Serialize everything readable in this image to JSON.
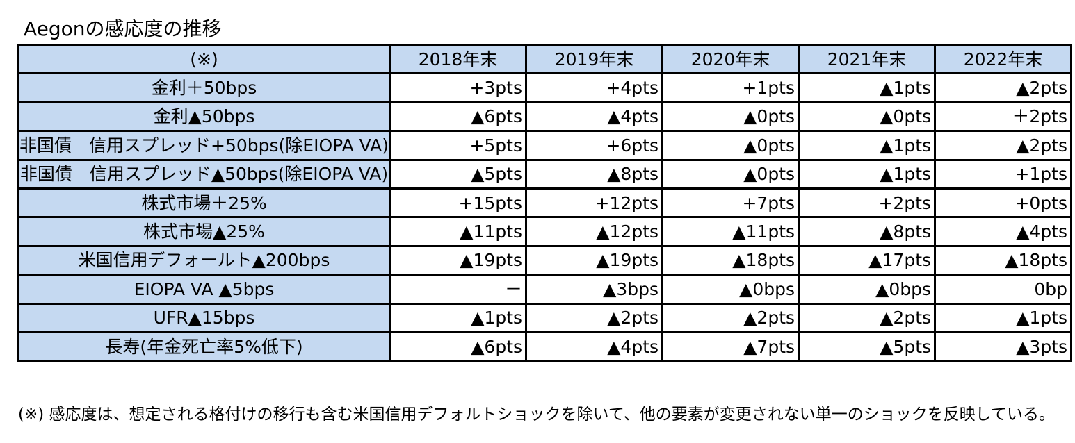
{
  "title": "Aegonの感応度の推移",
  "table": {
    "corner": "(※)",
    "columns": [
      "2018年末",
      "2019年末",
      "2020年末",
      "2021年末",
      "2022年末"
    ],
    "rows": [
      {
        "label": "金利＋50bps",
        "values": [
          "+3pts",
          "+4pts",
          "+1pts",
          "▲1pts",
          "▲2pts"
        ]
      },
      {
        "label": "金利▲50bps",
        "values": [
          "▲6pts",
          "▲4pts",
          "▲0pts",
          "▲0pts",
          "＋2pts"
        ]
      },
      {
        "label": "非国債　信用スプレッド+50bps(除EIOPA VA)",
        "values": [
          "+5pts",
          "+6pts",
          "▲0pts",
          "▲1pts",
          "▲2pts"
        ]
      },
      {
        "label": "非国債　信用スプレッド▲50bps(除EIOPA VA)",
        "values": [
          "▲5pts",
          "▲8pts",
          "▲0pts",
          "▲1pts",
          "+1pts"
        ]
      },
      {
        "label": "株式市場＋25%",
        "values": [
          "+15pts",
          "+12pts",
          "+7pts",
          "+2pts",
          "+0pts"
        ]
      },
      {
        "label": "株式市場▲25%",
        "values": [
          "▲11pts",
          "▲12pts",
          "▲11pts",
          "▲8pts",
          "▲4pts"
        ]
      },
      {
        "label": "米国信用デフォールト▲200bps",
        "values": [
          "▲19pts",
          "▲19pts",
          "▲18pts",
          "▲17pts",
          "▲18pts"
        ]
      },
      {
        "label": "EIOPA VA ▲5bps",
        "values": [
          "－",
          "▲3bps",
          "▲0bps",
          "▲0bps",
          "0bp"
        ]
      },
      {
        "label": "UFR▲15bps",
        "values": [
          "▲1pts",
          "▲2pts",
          "▲2pts",
          "▲2pts",
          "▲1pts"
        ]
      },
      {
        "label": "長寿(年金死亡率5%低下)",
        "values": [
          "▲6pts",
          "▲4pts",
          "▲7pts",
          "▲5pts",
          "▲3pts"
        ]
      }
    ]
  },
  "footnote": "(※) 感応度は、想定される格付けの移行も含む米国信用デフォルトショックを除いて、他の要素が変更されない単一のショックを反映している。",
  "colors": {
    "header_fill": "#c5d9f1",
    "border": "#000000"
  }
}
